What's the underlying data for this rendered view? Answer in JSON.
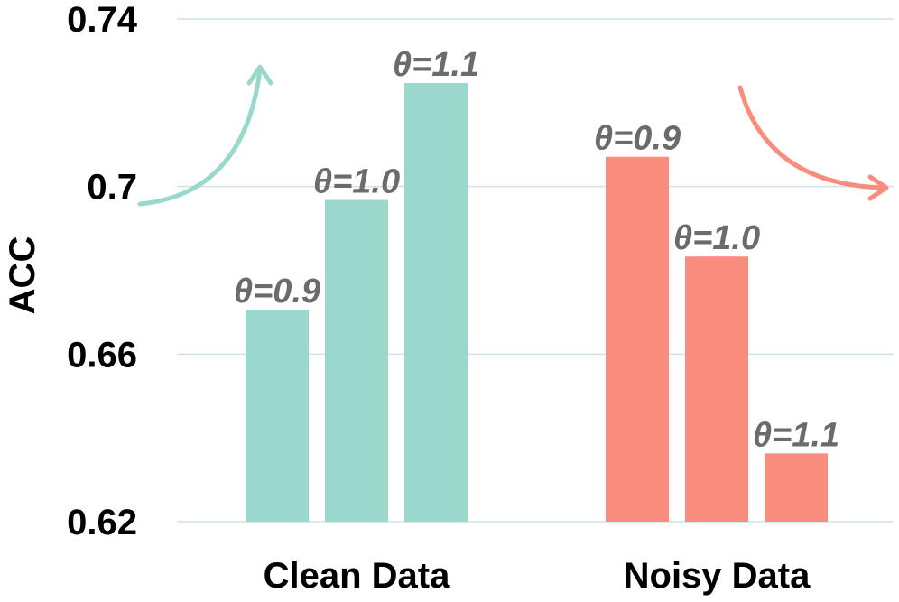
{
  "chart_data": {
    "type": "bar",
    "title": "",
    "xlabel": "",
    "ylabel": "ACC",
    "ylim": [
      0.62,
      0.74
    ],
    "yticks": [
      0.62,
      0.66,
      0.7,
      0.74
    ],
    "ytick_labels": [
      "0.62",
      "0.66",
      "0.7",
      "0.74"
    ],
    "grid": true,
    "groups": [
      {
        "category": "Clean Data",
        "color": "#9bd8cc",
        "trend": "up",
        "bars": [
          {
            "label": "θ=0.9",
            "value": 0.6706
          },
          {
            "label": "θ=1.0",
            "value": 0.6968
          },
          {
            "label": "θ=1.1",
            "value": 0.7247
          }
        ]
      },
      {
        "category": "Noisy Data",
        "color": "#fa8c7e",
        "trend": "down",
        "bars": [
          {
            "label": "θ=0.9",
            "value": 0.7071
          },
          {
            "label": "θ=1.0",
            "value": 0.6833
          },
          {
            "label": "θ=1.1",
            "value": 0.6363
          }
        ]
      }
    ]
  }
}
